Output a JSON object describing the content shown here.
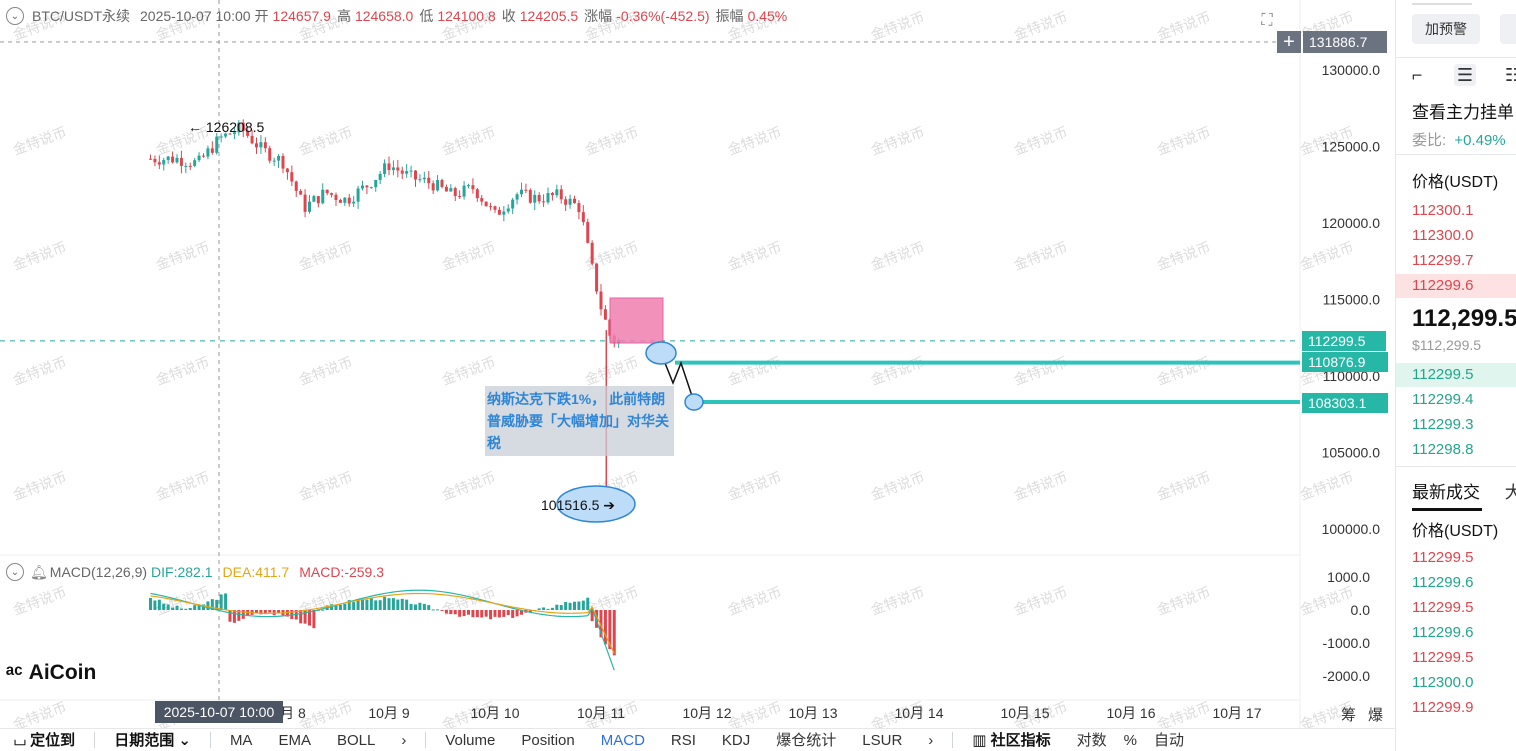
{
  "header": {
    "symbol": "BTC/USDT永续",
    "datetime": "2025-10-07 10:00",
    "open_label": "开",
    "open": "124657.9",
    "high_label": "高",
    "high": "124658.0",
    "low_label": "低",
    "low": "124100.8",
    "close_label": "收",
    "close": "124205.5",
    "change_label": "涨幅",
    "change": "-0.36%(-452.5)",
    "amp_label": "振幅",
    "amp": "0.45%"
  },
  "macd_header": {
    "name": "MACD(12,26,9)",
    "dif": "DIF:282.1",
    "dea": "DEA:411.7",
    "macd": "MACD:-259.3"
  },
  "price_axis": {
    "ticks": [
      "130000.0",
      "125000.0",
      "120000.0",
      "115000.0",
      "110000.0",
      "105000.0",
      "100000.0"
    ],
    "tick_values": [
      130000,
      125000,
      120000,
      115000,
      110000,
      105000,
      100000
    ],
    "top_tag": "131886.7",
    "last_price_tag": "112299.5",
    "support1_tag": "110876.9",
    "support2_tag": "108303.1"
  },
  "macd_axis": {
    "ticks": [
      "1000.0",
      "0.0",
      "-1000.0",
      "-2000.0"
    ],
    "tick_values": [
      1000,
      0,
      -1000,
      -2000
    ]
  },
  "time_axis": {
    "labels": [
      "月 8",
      "10月 9",
      "10月 10",
      "10月 11",
      "10月 12",
      "10月 13",
      "10月 14",
      "10月 15",
      "10月 16",
      "10月 17"
    ],
    "crosshair_time": "2025-10-07 10:00"
  },
  "chart_annotations": {
    "high_label": "← 126208.5",
    "low_label": "101516.5 ➔",
    "note": "纳斯达克下跌1%， 此前特朗普威胁要「大幅增加」对华关税"
  },
  "chart_data": {
    "type": "line",
    "title": "",
    "series": [
      {
        "name": "",
        "x_days": [
          7.0,
          7.2,
          7.4,
          7.6,
          7.8,
          8.0,
          8.2,
          8.4,
          8.6,
          8.8,
          9.0,
          9.2,
          9.4,
          9.6,
          9.8,
          10.0,
          10.2,
          10.4,
          10.6,
          10.8,
          10.9,
          11.0,
          11.1,
          11.2
        ],
        "values": [
          124200,
          123900,
          125500,
          126208.5,
          124800,
          124000,
          121000,
          122000,
          121500,
          122500,
          123800,
          123000,
          122600,
          121800,
          122300,
          120500,
          121900,
          121600,
          121800,
          121000,
          117500,
          114500,
          112300,
          112299.5
        ]
      }
    ],
    "low_wick": 101516.5,
    "ylim": [
      99000,
      133000
    ]
  },
  "watermark": "金特说币",
  "logo": "AiCoin",
  "bottom_toolbar": {
    "locate": "定位到",
    "range": "日期范围 ⌄",
    "items": [
      "MA",
      "EMA",
      "BOLL",
      "›",
      "Volume",
      "Position",
      "MACD",
      "RSI",
      "KDJ",
      "爆仓统计",
      "LSUR",
      "›"
    ],
    "community": "社区指标",
    "right_items": [
      "对数",
      "%",
      "自动"
    ]
  },
  "right_panel": {
    "alert_button": "加预警",
    "view_main": "查看主力挂单",
    "ratio_label": "委比:",
    "ratio_value": "+0.49%",
    "price_header": "价格(USDT)",
    "asks": [
      "112300.1",
      "112300.0",
      "112299.7",
      "112299.6"
    ],
    "mid_price": "112,299.5",
    "mid_usd": "$112,299.5",
    "bids": [
      "112299.5",
      "112299.4",
      "112299.3",
      "112298.8"
    ],
    "trades_tab": "最新成交",
    "trades_tab2": "大",
    "trades_price_header": "价格(USDT)",
    "trades": [
      {
        "price": "112299.5",
        "side": "sell"
      },
      {
        "price": "112299.6",
        "side": "buy"
      },
      {
        "price": "112299.5",
        "side": "sell"
      },
      {
        "price": "112299.6",
        "side": "buy"
      },
      {
        "price": "112299.5",
        "side": "sell"
      },
      {
        "price": "112300.0",
        "side": "buy"
      },
      {
        "price": "112299.9",
        "side": "sell"
      }
    ]
  },
  "axis_corner": {
    "a": "筹",
    "b": "爆"
  },
  "colors": {
    "up": "#26a69a",
    "down": "#e0454e",
    "support": "#2ec4bc",
    "zone": "#f07fb0"
  }
}
